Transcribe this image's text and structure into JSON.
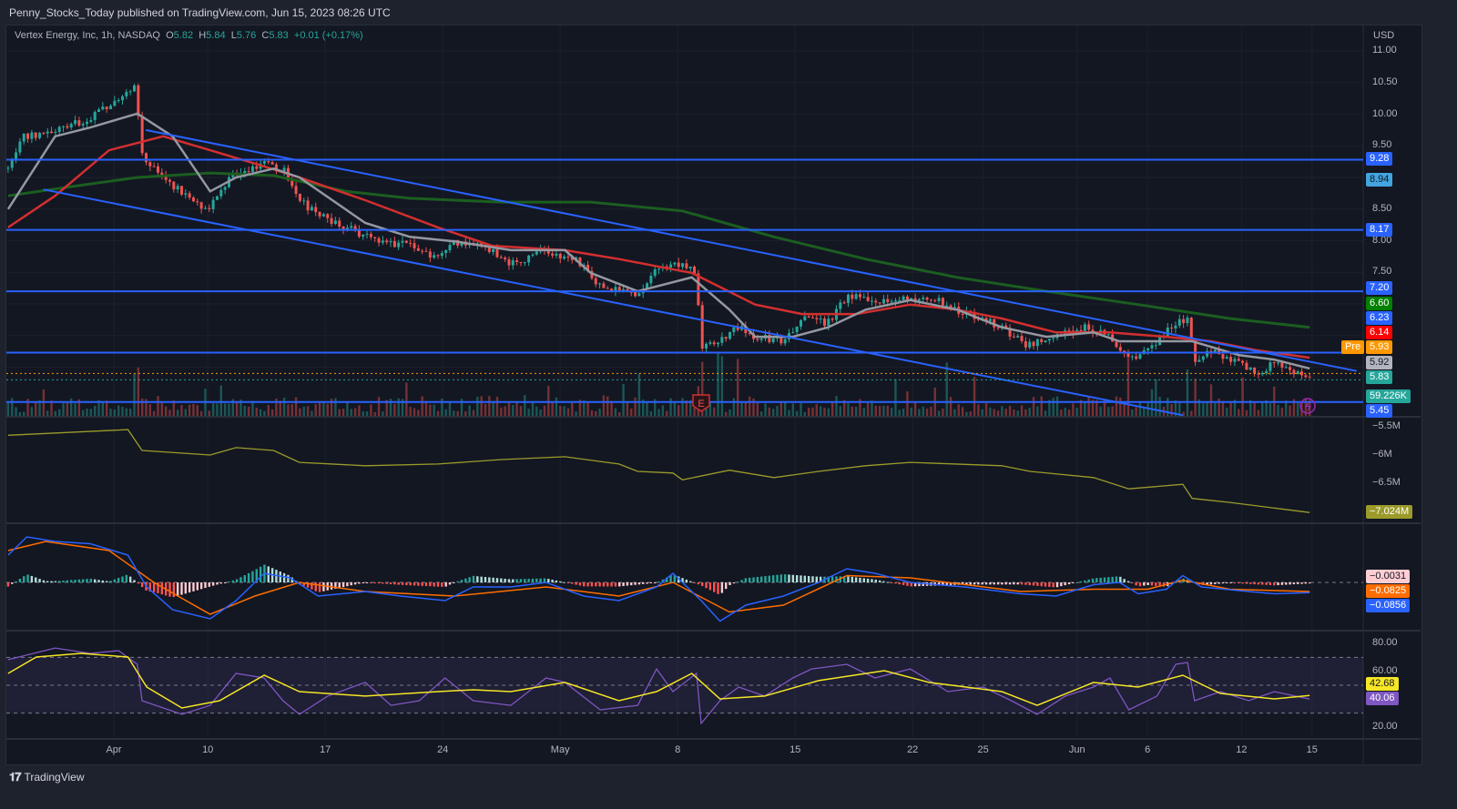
{
  "header": {
    "published": "Penny_Stocks_Today published on TradingView.com, Jun 15, 2023 08:26 UTC"
  },
  "legend": {
    "symbol": "Vertex Energy, Inc, 1h, NASDAQ",
    "o_label": "O",
    "o": "5.82",
    "h_label": "H",
    "h": "5.84",
    "l_label": "L",
    "l": "5.76",
    "c_label": "C",
    "c": "5.83",
    "change": "+0.01 (+0.17%)"
  },
  "footer": {
    "brand": "TradingView",
    "logo": "17"
  },
  "colors": {
    "up": "#26a69a",
    "down": "#ef5350",
    "sma": "#9598a1",
    "ema": "#d32f2f",
    "ma200": "#1b5e20",
    "channel": "#2962ff",
    "obv": "#9b9b2a",
    "macd": "#2962ff",
    "signal": "#ff6d00",
    "rsi": "#7e57c2",
    "rsi_ma": "#f5e626"
  },
  "price_axis": {
    "currency": "USD",
    "ticks": [
      "11.00",
      "10.50",
      "10.00",
      "9.50",
      "8.50",
      "8.00",
      "7.50"
    ]
  },
  "price_labels": [
    {
      "text": "9.28",
      "bg": "#2962ff",
      "fg": "#ffffff"
    },
    {
      "text": "8.94",
      "bg": "#42a5e0",
      "fg": "#131722"
    },
    {
      "text": "8.17",
      "bg": "#2962ff",
      "fg": "#ffffff"
    },
    {
      "text": "7.20",
      "bg": "#2962ff",
      "fg": "#ffffff"
    },
    {
      "text": "6.60",
      "bg": "#008000",
      "fg": "#ffffff"
    },
    {
      "text": "6.23",
      "bg": "#2962ff",
      "fg": "#ffffff"
    },
    {
      "text": "6.14",
      "bg": "#ff0000",
      "fg": "#ffffff"
    },
    {
      "text": "5.93",
      "bg": "#ff9800",
      "fg": "#ffffff"
    },
    {
      "text": "5.92",
      "bg": "#b2b5be",
      "fg": "#131722"
    },
    {
      "text": "5.83",
      "bg": "#26a69a",
      "fg": "#ffffff"
    },
    {
      "text": "59.226K",
      "bg": "#26a69a",
      "fg": "#ffffff"
    },
    {
      "text": "5.45",
      "bg": "#2962ff",
      "fg": "#ffffff"
    }
  ],
  "pre_label": "Pre",
  "earnings_marker": "E",
  "obv_axis": {
    "ticks": [
      "−5.5M",
      "−6M",
      "−6.5M"
    ],
    "last": "−7.024M"
  },
  "macd_axis": {
    "labels": [
      {
        "text": "−0.0031",
        "bg": "#ffcdd2",
        "fg": "#131722"
      },
      {
        "text": "−0.0825",
        "bg": "#ff6d00",
        "fg": "#ffffff"
      },
      {
        "text": "−0.0856",
        "bg": "#2962ff",
        "fg": "#ffffff"
      }
    ]
  },
  "rsi_axis": {
    "ticks": [
      "80.00",
      "60.00",
      "20.00"
    ],
    "labels": [
      {
        "text": "42.68",
        "bg": "#f5e626",
        "fg": "#131722"
      },
      {
        "text": "40.06",
        "bg": "#7e57c2",
        "fg": "#ffffff"
      }
    ]
  },
  "time_axis": [
    {
      "label": "Apr",
      "day": 0
    },
    {
      "label": "10",
      "day": 4
    },
    {
      "label": "17",
      "day": 9
    },
    {
      "label": "24",
      "day": 14
    },
    {
      "label": "May",
      "day": 19
    },
    {
      "label": "8",
      "day": 24
    },
    {
      "label": "15",
      "day": 29
    },
    {
      "label": "22",
      "day": 34
    },
    {
      "label": "25",
      "day": 37
    },
    {
      "label": "Jun",
      "day": 41
    },
    {
      "label": "6",
      "day": 44
    },
    {
      "label": "12",
      "day": 48
    },
    {
      "label": "15",
      "day": 51
    }
  ],
  "chart_data": {
    "type": "candlestick",
    "title": "Vertex Energy, Inc, 1h, NASDAQ",
    "x_unit": "trading days from Apr 3, 2023",
    "xlim": [
      -4.5,
      51
    ],
    "ylim": [
      5.3,
      11.2
    ],
    "close": [
      [
        -4.5,
        9.14
      ],
      [
        -3.9,
        9.65
      ],
      [
        -2.5,
        9.72
      ],
      [
        -1,
        9.94
      ],
      [
        0.1,
        10.22
      ],
      [
        0.9,
        10.44
      ],
      [
        1.05,
        9.94
      ],
      [
        1.25,
        9.29
      ],
      [
        2.1,
        9.0
      ],
      [
        3.1,
        8.71
      ],
      [
        4.0,
        8.5
      ],
      [
        5.0,
        9.0
      ],
      [
        6.4,
        9.21
      ],
      [
        7.2,
        9.14
      ],
      [
        8.1,
        8.57
      ],
      [
        9.1,
        8.35
      ],
      [
        10.3,
        8.14
      ],
      [
        11.4,
        7.99
      ],
      [
        12.6,
        7.92
      ],
      [
        13.8,
        7.7
      ],
      [
        14.5,
        7.99
      ],
      [
        15.7,
        7.92
      ],
      [
        16.9,
        7.63
      ],
      [
        18.4,
        7.85
      ],
      [
        20,
        7.63
      ],
      [
        20.7,
        7.27
      ],
      [
        22.3,
        7.13
      ],
      [
        23.1,
        7.56
      ],
      [
        24,
        7.63
      ],
      [
        24.8,
        7.49
      ],
      [
        25,
        6.34
      ],
      [
        25.8,
        6.41
      ],
      [
        26.6,
        6.63
      ],
      [
        27.3,
        6.48
      ],
      [
        28.5,
        6.41
      ],
      [
        29.3,
        6.77
      ],
      [
        30.4,
        6.7
      ],
      [
        31.2,
        7.13
      ],
      [
        32.4,
        7.06
      ],
      [
        33.9,
        7.06
      ],
      [
        35.1,
        7.06
      ],
      [
        36.2,
        6.84
      ],
      [
        37.4,
        6.7
      ],
      [
        38.9,
        6.34
      ],
      [
        40.1,
        6.48
      ],
      [
        41.3,
        6.63
      ],
      [
        42.4,
        6.48
      ],
      [
        43.2,
        6.12
      ],
      [
        44,
        6.27
      ],
      [
        45.2,
        6.7
      ],
      [
        45.7,
        6.77
      ],
      [
        46,
        6.12
      ],
      [
        46.7,
        6.27
      ],
      [
        47.9,
        6.05
      ],
      [
        48.6,
        5.91
      ],
      [
        49.4,
        6.05
      ],
      [
        50.2,
        5.91
      ],
      [
        50.9,
        5.83
      ]
    ],
    "sma": [
      [
        -4.5,
        8.5
      ],
      [
        -2.5,
        9.65
      ],
      [
        -1,
        9.79
      ],
      [
        1,
        10.01
      ],
      [
        2.5,
        9.65
      ],
      [
        4.1,
        8.78
      ],
      [
        5.2,
        9.0
      ],
      [
        6.8,
        9.14
      ],
      [
        7.9,
        9.0
      ],
      [
        10.7,
        8.28
      ],
      [
        12.6,
        8.06
      ],
      [
        14.5,
        7.99
      ],
      [
        16.9,
        7.85
      ],
      [
        19.2,
        7.85
      ],
      [
        20.3,
        7.49
      ],
      [
        22.3,
        7.2
      ],
      [
        24.6,
        7.42
      ],
      [
        26.2,
        6.91
      ],
      [
        27.3,
        6.48
      ],
      [
        28.9,
        6.48
      ],
      [
        30.4,
        6.63
      ],
      [
        32,
        6.91
      ],
      [
        33.9,
        7.06
      ],
      [
        35.9,
        6.91
      ],
      [
        37.8,
        6.63
      ],
      [
        39.7,
        6.48
      ],
      [
        41.7,
        6.55
      ],
      [
        42.8,
        6.41
      ],
      [
        44.8,
        6.41
      ],
      [
        45.9,
        6.41
      ],
      [
        47.9,
        6.19
      ],
      [
        49.4,
        6.12
      ],
      [
        50.9,
        5.98
      ]
    ],
    "ema": [
      [
        -4.5,
        8.21
      ],
      [
        -2.5,
        8.71
      ],
      [
        -0.2,
        9.43
      ],
      [
        2.1,
        9.65
      ],
      [
        4.1,
        9.43
      ],
      [
        6,
        9.22
      ],
      [
        7.9,
        9.0
      ],
      [
        10.7,
        8.64
      ],
      [
        13.8,
        8.21
      ],
      [
        16.1,
        7.92
      ],
      [
        19.2,
        7.85
      ],
      [
        21.5,
        7.71
      ],
      [
        24.6,
        7.49
      ],
      [
        27.3,
        6.99
      ],
      [
        29.3,
        6.84
      ],
      [
        31.6,
        6.84
      ],
      [
        33.9,
        6.99
      ],
      [
        35.9,
        6.91
      ],
      [
        37.8,
        6.77
      ],
      [
        40.1,
        6.55
      ],
      [
        42.4,
        6.55
      ],
      [
        44.8,
        6.48
      ],
      [
        46.7,
        6.41
      ],
      [
        48.6,
        6.27
      ],
      [
        50.9,
        6.15
      ]
    ],
    "ma200": [
      [
        -4.5,
        8.71
      ],
      [
        -1.7,
        8.86
      ],
      [
        1,
        9.0
      ],
      [
        4.1,
        9.07
      ],
      [
        6.8,
        9.03
      ],
      [
        9.9,
        8.78
      ],
      [
        12.6,
        8.67
      ],
      [
        16.5,
        8.61
      ],
      [
        20.3,
        8.61
      ],
      [
        24.2,
        8.47
      ],
      [
        28.1,
        8.06
      ],
      [
        32,
        7.71
      ],
      [
        35.9,
        7.42
      ],
      [
        39.7,
        7.2
      ],
      [
        43.6,
        6.99
      ],
      [
        47.5,
        6.77
      ],
      [
        50.9,
        6.63
      ]
    ],
    "channel_upper": [
      [
        1.36,
        9.75
      ],
      [
        52.9,
        5.94
      ]
    ],
    "channel_lower": [
      [
        -3,
        8.81
      ],
      [
        45.5,
        5.24
      ]
    ],
    "horizontal_levels": [
      9.28,
      8.17,
      7.2,
      6.23,
      5.45
    ],
    "price_lines": [
      {
        "price": 5.93,
        "name": "pre"
      },
      {
        "price": 5.83,
        "name": "last"
      }
    ],
    "obv_millions": [
      [
        -4.5,
        -5.65
      ],
      [
        0.6,
        -5.55
      ],
      [
        1.2,
        -5.92
      ],
      [
        4.1,
        -6.0
      ],
      [
        5.2,
        -5.87
      ],
      [
        6.8,
        -5.92
      ],
      [
        7.9,
        -6.13
      ],
      [
        10.7,
        -6.19
      ],
      [
        13.8,
        -6.16
      ],
      [
        16.5,
        -6.08
      ],
      [
        19.2,
        -6.03
      ],
      [
        21.5,
        -6.16
      ],
      [
        22.3,
        -6.29
      ],
      [
        23.8,
        -6.32
      ],
      [
        24.2,
        -6.44
      ],
      [
        26.2,
        -6.27
      ],
      [
        28.1,
        -6.4
      ],
      [
        30,
        -6.29
      ],
      [
        32,
        -6.19
      ],
      [
        33.9,
        -6.13
      ],
      [
        37.8,
        -6.19
      ],
      [
        39,
        -6.29
      ],
      [
        41.7,
        -6.4
      ],
      [
        43.2,
        -6.6
      ],
      [
        45.5,
        -6.52
      ],
      [
        45.9,
        -6.77
      ],
      [
        47.5,
        -6.84
      ],
      [
        49.4,
        -6.94
      ],
      [
        50.9,
        -7.02
      ]
    ],
    "macd": [
      [
        -4.5,
        0.24
      ],
      [
        -3.7,
        0.4
      ],
      [
        -2.5,
        0.36
      ],
      [
        -1,
        0.34
      ],
      [
        0.6,
        0.24
      ],
      [
        1.4,
        -0.04
      ],
      [
        2.5,
        -0.24
      ],
      [
        4.1,
        -0.32
      ],
      [
        5.2,
        -0.16
      ],
      [
        6.4,
        0.08
      ],
      [
        7.5,
        0.04
      ],
      [
        8.7,
        -0.12
      ],
      [
        10.7,
        -0.08
      ],
      [
        12.2,
        -0.12
      ],
      [
        14.1,
        -0.16
      ],
      [
        15.3,
        -0.04
      ],
      [
        16.9,
        -0.04
      ],
      [
        18.4,
        0
      ],
      [
        20,
        -0.12
      ],
      [
        21.5,
        -0.16
      ],
      [
        23.1,
        -0.04
      ],
      [
        23.8,
        0.08
      ],
      [
        25,
        -0.16
      ],
      [
        25.8,
        -0.34
      ],
      [
        26.9,
        -0.2
      ],
      [
        28.5,
        -0.12
      ],
      [
        30,
        0
      ],
      [
        31.2,
        0.12
      ],
      [
        32.4,
        0.08
      ],
      [
        33.9,
        0
      ],
      [
        36.2,
        -0.04
      ],
      [
        38.6,
        -0.1
      ],
      [
        40.1,
        -0.12
      ],
      [
        41.7,
        -0.02
      ],
      [
        42.8,
        0
      ],
      [
        43.6,
        -0.1
      ],
      [
        44.8,
        -0.06
      ],
      [
        45.5,
        0.06
      ],
      [
        46.3,
        -0.04
      ],
      [
        48.3,
        -0.08
      ],
      [
        49.4,
        -0.1
      ],
      [
        50.9,
        -0.09
      ]
    ],
    "signal": [
      [
        -4.5,
        0.28
      ],
      [
        -2.9,
        0.36
      ],
      [
        -0.2,
        0.28
      ],
      [
        1.7,
        0
      ],
      [
        4.1,
        -0.28
      ],
      [
        6,
        -0.12
      ],
      [
        7.9,
        0
      ],
      [
        10.7,
        -0.08
      ],
      [
        14.5,
        -0.12
      ],
      [
        18.4,
        -0.04
      ],
      [
        21.5,
        -0.12
      ],
      [
        23.8,
        0
      ],
      [
        26.2,
        -0.26
      ],
      [
        28.5,
        -0.2
      ],
      [
        31.2,
        0.06
      ],
      [
        33.9,
        0.04
      ],
      [
        38.6,
        -0.08
      ],
      [
        41.7,
        -0.06
      ],
      [
        44,
        -0.06
      ],
      [
        45.5,
        0.02
      ],
      [
        47.5,
        -0.06
      ],
      [
        50.9,
        -0.08
      ]
    ],
    "rsi": [
      [
        -4.5,
        68.3
      ],
      [
        -2.5,
        76.7
      ],
      [
        -1,
        72.8
      ],
      [
        0.2,
        74.8
      ],
      [
        1,
        65
      ],
      [
        1.2,
        38.9
      ],
      [
        2.9,
        29.1
      ],
      [
        4.1,
        35.6
      ],
      [
        5.2,
        58.5
      ],
      [
        6.4,
        55.2
      ],
      [
        7.2,
        38.9
      ],
      [
        7.9,
        29.1
      ],
      [
        9.1,
        42.2
      ],
      [
        10.7,
        52
      ],
      [
        11.8,
        35.6
      ],
      [
        13,
        38.9
      ],
      [
        14.1,
        55.2
      ],
      [
        15.3,
        38.9
      ],
      [
        16.9,
        35.6
      ],
      [
        18.4,
        55.2
      ],
      [
        19.2,
        52
      ],
      [
        20.7,
        32.4
      ],
      [
        22.3,
        35.6
      ],
      [
        23.1,
        61.7
      ],
      [
        23.8,
        45.4
      ],
      [
        24.8,
        58.5
      ],
      [
        25,
        22.6
      ],
      [
        25.8,
        38.9
      ],
      [
        26.6,
        48.7
      ],
      [
        27.7,
        42.2
      ],
      [
        28.9,
        55.2
      ],
      [
        29.7,
        61.7
      ],
      [
        31.2,
        65
      ],
      [
        32.4,
        55.2
      ],
      [
        33.9,
        61.7
      ],
      [
        35.5,
        45.4
      ],
      [
        37,
        48.7
      ],
      [
        38.2,
        38.9
      ],
      [
        39.3,
        29.1
      ],
      [
        40.5,
        42.2
      ],
      [
        41.7,
        48.7
      ],
      [
        42.4,
        55.2
      ],
      [
        43.2,
        32.4
      ],
      [
        44.4,
        42.2
      ],
      [
        45.2,
        65
      ],
      [
        45.7,
        66.3
      ],
      [
        46,
        38.9
      ],
      [
        47.1,
        45.4
      ],
      [
        48.3,
        38.9
      ],
      [
        49.4,
        45.4
      ],
      [
        50.9,
        40.06
      ]
    ],
    "rsi_ma": [
      [
        -4.5,
        58.5
      ],
      [
        -3.3,
        70.2
      ],
      [
        -1.4,
        72.8
      ],
      [
        0.6,
        70.2
      ],
      [
        1.4,
        48.7
      ],
      [
        2.9,
        33.7
      ],
      [
        4.5,
        38.9
      ],
      [
        6.4,
        57.2
      ],
      [
        7.9,
        45.4
      ],
      [
        10.7,
        42.2
      ],
      [
        13.8,
        45.4
      ],
      [
        15.3,
        46.7
      ],
      [
        16.9,
        45.4
      ],
      [
        19.2,
        52
      ],
      [
        21.5,
        38.9
      ],
      [
        23.1,
        45.4
      ],
      [
        24.6,
        58.5
      ],
      [
        25.8,
        40.2
      ],
      [
        27.7,
        42.2
      ],
      [
        30,
        53.3
      ],
      [
        32.8,
        60.4
      ],
      [
        34.7,
        52
      ],
      [
        37.8,
        45.4
      ],
      [
        39.3,
        35.6
      ],
      [
        41.7,
        52
      ],
      [
        43.6,
        48.7
      ],
      [
        45.5,
        57.2
      ],
      [
        47.1,
        44.1
      ],
      [
        49.4,
        40.2
      ],
      [
        50.9,
        42.68
      ]
    ],
    "rsi_levels": [
      70,
      50,
      30
    ]
  }
}
